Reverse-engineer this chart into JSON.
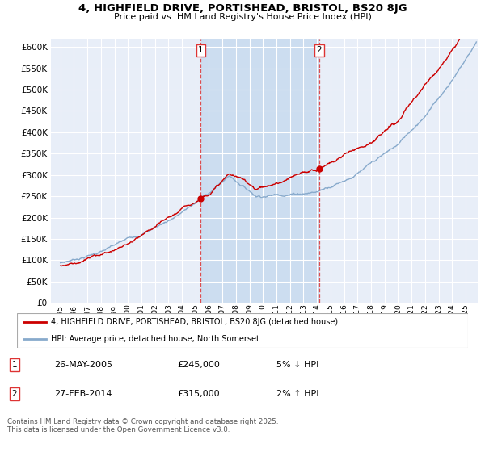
{
  "title1": "4, HIGHFIELD DRIVE, PORTISHEAD, BRISTOL, BS20 8JG",
  "title2": "Price paid vs. HM Land Registry's House Price Index (HPI)",
  "ytick_values": [
    0,
    50000,
    100000,
    150000,
    200000,
    250000,
    300000,
    350000,
    400000,
    450000,
    500000,
    550000,
    600000
  ],
  "xtick_years": [
    1995,
    1996,
    1997,
    1998,
    1999,
    2000,
    2001,
    2002,
    2003,
    2004,
    2005,
    2006,
    2007,
    2008,
    2009,
    2010,
    2011,
    2012,
    2013,
    2014,
    2015,
    2016,
    2017,
    2018,
    2019,
    2020,
    2021,
    2022,
    2023,
    2024,
    2025
  ],
  "sale1_year": 2005.4,
  "sale1_price": 245000,
  "sale2_year": 2014.15,
  "sale2_price": 315000,
  "legend_red": "4, HIGHFIELD DRIVE, PORTISHEAD, BRISTOL, BS20 8JG (detached house)",
  "legend_blue": "HPI: Average price, detached house, North Somerset",
  "table_row1": [
    "1",
    "26-MAY-2005",
    "£245,000",
    "5% ↓ HPI"
  ],
  "table_row2": [
    "2",
    "27-FEB-2014",
    "£315,000",
    "2% ↑ HPI"
  ],
  "footnote": "Contains HM Land Registry data © Crown copyright and database right 2025.\nThis data is licensed under the Open Government Licence v3.0.",
  "bg_color": "#e8eef8",
  "grid_color": "#ffffff",
  "line_red": "#cc0000",
  "line_blue": "#88aacc",
  "shade_color": "#ccddf0",
  "dash_color": "#dd3333",
  "ylim": [
    0,
    620000
  ],
  "xlim_left": 1994.3,
  "xlim_right": 2025.9
}
